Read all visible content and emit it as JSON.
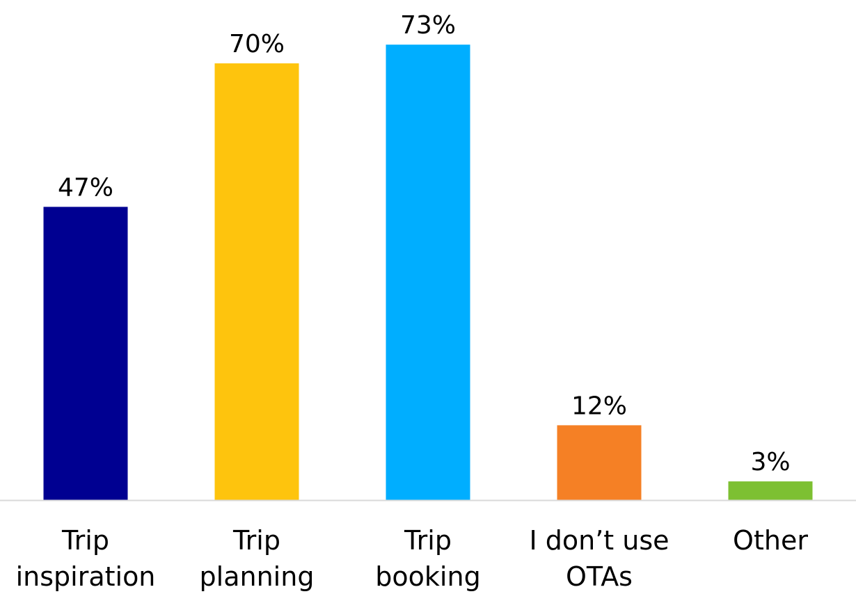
{
  "chart_data": {
    "type": "bar",
    "title": "",
    "xlabel": "",
    "ylabel": "",
    "ylim": [
      0,
      80
    ],
    "grid": false,
    "legend": "none",
    "categories": [
      [
        "Trip",
        "inspiration"
      ],
      [
        "Trip",
        "planning"
      ],
      [
        "Trip",
        "booking"
      ],
      [
        "I don’t use",
        "OTAs"
      ],
      [
        "Other"
      ]
    ],
    "values": [
      47,
      70,
      73,
      12,
      3
    ],
    "data_labels": [
      "47%",
      "70%",
      "73%",
      "12%",
      "3%"
    ],
    "colors": [
      "#000091",
      "#FEC40D",
      "#00AEFF",
      "#F58025",
      "#7DC032"
    ],
    "axis_line_color": "#D9D9D9"
  }
}
